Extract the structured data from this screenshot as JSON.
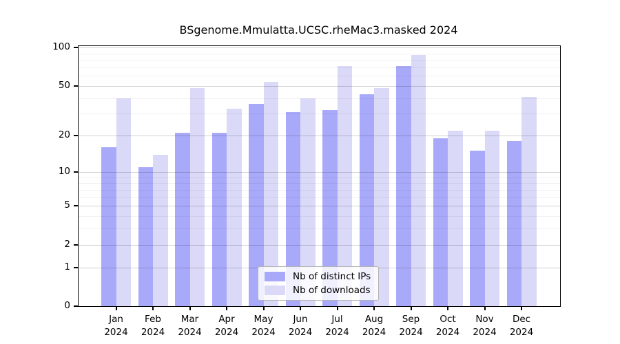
{
  "title": "BSgenome.Mmulatta.UCSC.rheMac3.masked 2024",
  "chart_data": {
    "type": "bar",
    "title": "BSgenome.Mmulatta.UCSC.rheMac3.masked 2024",
    "categories": [
      "Jan",
      "Feb",
      "Mar",
      "Apr",
      "May",
      "Jun",
      "Jul",
      "Aug",
      "Sep",
      "Oct",
      "Nov",
      "Dec"
    ],
    "year": "2024",
    "series": [
      {
        "name": "Nb of distinct IPs",
        "color": "#a9a9fa",
        "values": [
          16,
          11,
          21,
          21,
          36,
          31,
          32,
          43,
          72,
          19,
          15,
          18
        ]
      },
      {
        "name": "Nb of downloads",
        "color": "#dadaf8",
        "values": [
          40,
          14,
          48,
          33,
          54,
          40,
          72,
          48,
          88,
          22,
          22,
          41
        ]
      }
    ],
    "xlabel": "",
    "ylabel": "",
    "y_scale": "log10(value+1), zero at baseline",
    "y_ticks": [
      0,
      1,
      2,
      5,
      10,
      20,
      50,
      100
    ],
    "y_minor_gridlines": [
      3,
      4,
      6,
      7,
      8,
      9,
      30,
      40,
      60,
      70,
      80,
      90
    ],
    "ylim": [
      0,
      100
    ],
    "grid": true,
    "legend_position": "bottom-center",
    "colors": {
      "axis": "#000000",
      "major_gridline": "#c9c9c9",
      "minor_gridline": "#efefef",
      "background": "#ffffff"
    }
  }
}
